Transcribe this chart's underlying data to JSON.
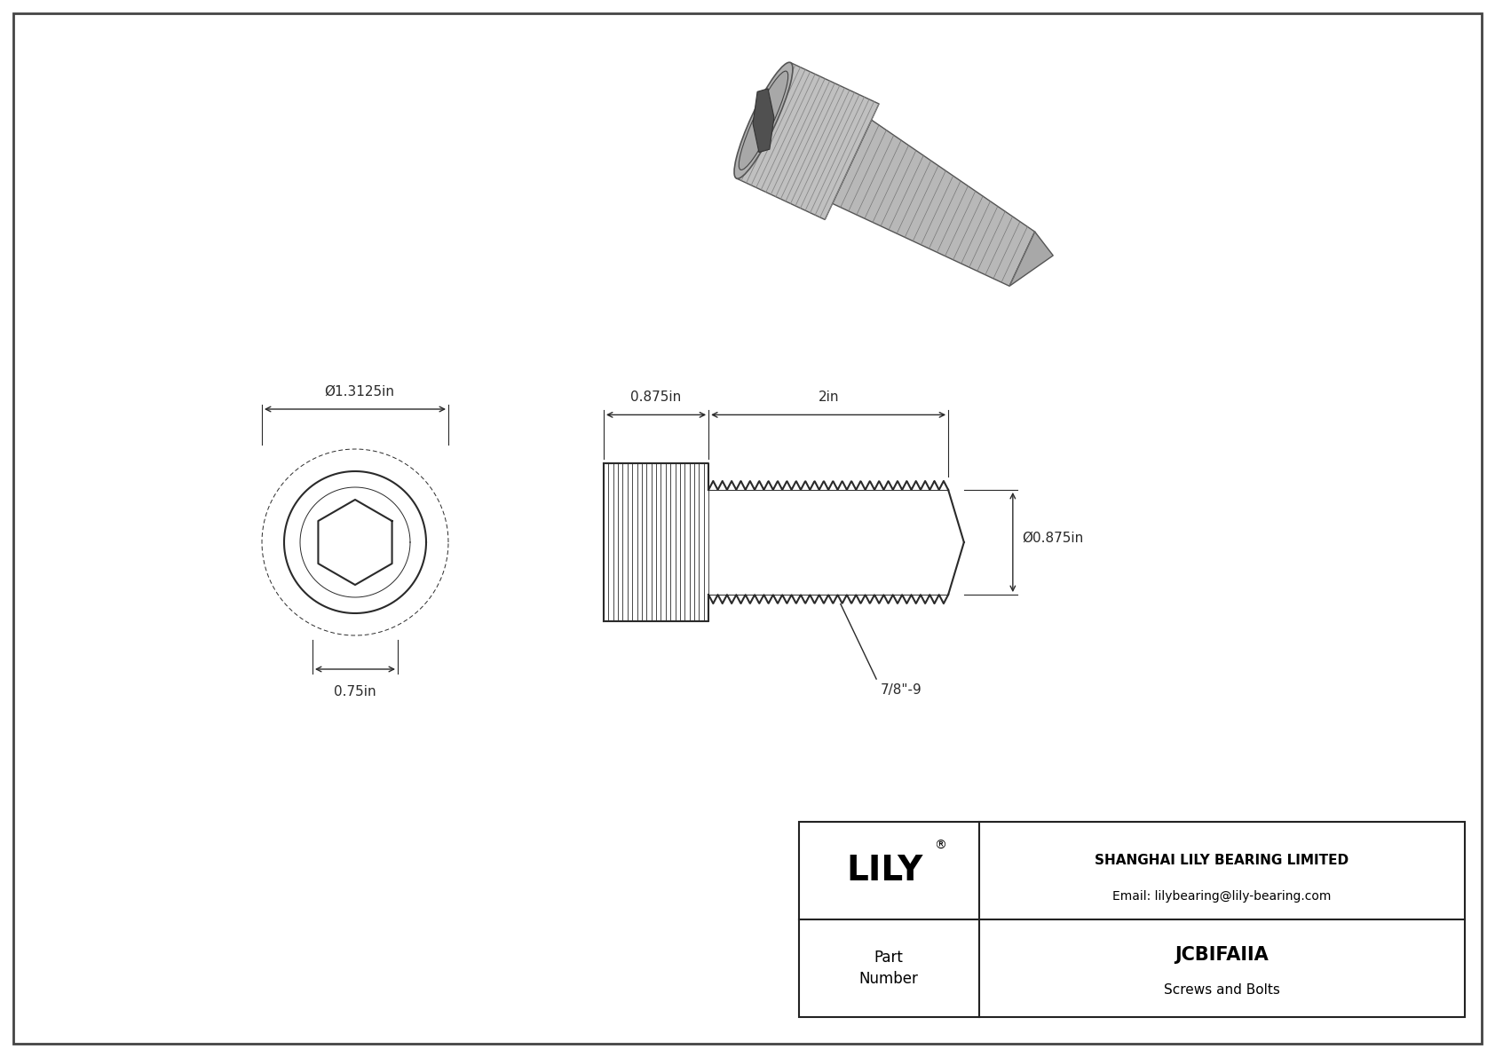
{
  "bg_color": "#ffffff",
  "line_color": "#2a2a2a",
  "dim_color": "#2a2a2a",
  "title_company": "SHANGHAI LILY BEARING LIMITED",
  "title_email": "Email: lilybearing@lily-bearing.com",
  "part_number": "JCBIFAIIA",
  "part_category": "Screws and Bolts",
  "part_label": "Part\nNumber",
  "brand": "LILY",
  "dim_head_diameter": "Ø1.3125in",
  "dim_head_socket": "0.75in",
  "dim_thread_length": "2in",
  "dim_head_length": "0.875in",
  "dim_shaft_diameter": "Ø0.875in",
  "dim_thread_label": "7/8\"-9",
  "lw_main": 1.5,
  "lw_dim": 1.0,
  "lw_thin": 0.7
}
